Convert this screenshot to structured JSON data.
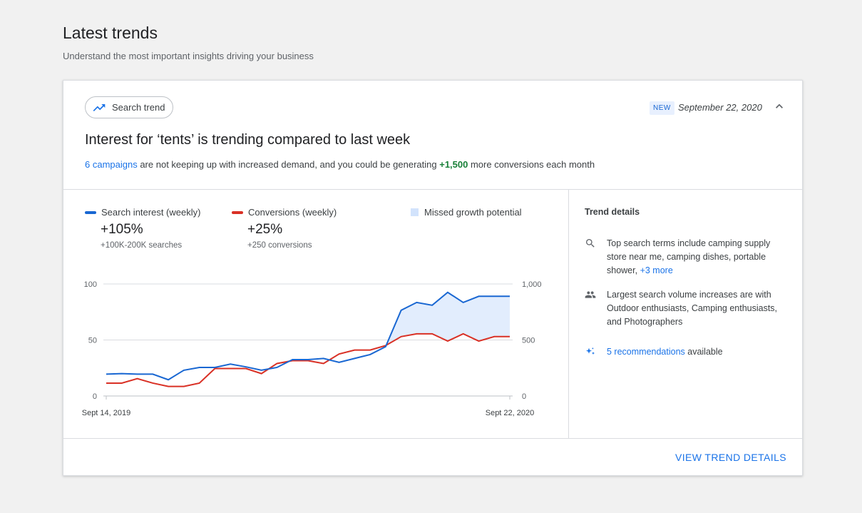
{
  "page": {
    "title": "Latest trends",
    "subtitle": "Understand the most important insights driving your business"
  },
  "card": {
    "chip_label": "Search trend",
    "chip_icon": "trending-up-icon",
    "badge": "NEW",
    "date": "September 22, 2020",
    "headline": "Interest for ‘tents’ is trending compared to last week",
    "desc": {
      "link": "6 campaigns",
      "mid": " are not keeping up with increased demand, and you could be generating ",
      "highlight": "+1,500",
      "end": " more conversions each month"
    },
    "footer_button": "VIEW TREND DETAILS"
  },
  "legend": [
    {
      "label": "Search interest (weekly)",
      "value": "+105%",
      "sub": "+100K-200K searches",
      "color": "#1967d2"
    },
    {
      "label": "Conversions (weekly)",
      "value": "+25%",
      "sub": "+250 conversions",
      "color": "#d93025"
    },
    {
      "label": "Missed growth potential",
      "color": "#d2e3fc"
    }
  ],
  "details": {
    "title": "Trend details",
    "items": [
      {
        "icon": "search-icon",
        "text": "Top search terms include camping supply store near me, camping dishes, portable shower, ",
        "link": "+3 more",
        "after": ""
      },
      {
        "icon": "people-icon",
        "text": "Largest search volume increases are with Outdoor enthusiasts, Camping enthusiasts, and Photographers",
        "link": "",
        "after": ""
      },
      {
        "icon": "sparkle-icon",
        "text": "",
        "link": "5 recommendations",
        "after": " available"
      }
    ]
  },
  "chart_data": {
    "type": "line",
    "x_start_label": "Sept 14, 2019",
    "x_end_label": "Sept 22, 2020",
    "left_axis": {
      "ticks": [
        "0",
        "50",
        "100"
      ],
      "range": [
        0,
        100
      ]
    },
    "right_axis": {
      "ticks": [
        "0",
        "500",
        "1,000"
      ],
      "range": [
        0,
        1000
      ]
    },
    "series": [
      {
        "name": "Search interest (weekly)",
        "axis": "left",
        "color": "#1967d2",
        "values": [
          19.5,
          20,
          19.5,
          19.5,
          14.5,
          23,
          25.5,
          25.5,
          28.5,
          26,
          23,
          25.5,
          32.5,
          32.5,
          33.5,
          30,
          33.5,
          37,
          44,
          76.5,
          83.5,
          81,
          92.5,
          83.5,
          89,
          89,
          89
        ]
      },
      {
        "name": "Conversions (weekly)",
        "axis": "right",
        "color": "#d93025",
        "values": [
          115,
          115,
          155,
          115,
          85,
          85,
          115,
          245,
          245,
          245,
          200,
          290,
          315,
          315,
          290,
          375,
          410,
          410,
          450,
          530,
          555,
          555,
          490,
          555,
          490,
          530,
          530
        ]
      }
    ],
    "fill_between": {
      "from_index": 18,
      "label": "Missed growth potential",
      "color": "#d2e3fc"
    }
  }
}
